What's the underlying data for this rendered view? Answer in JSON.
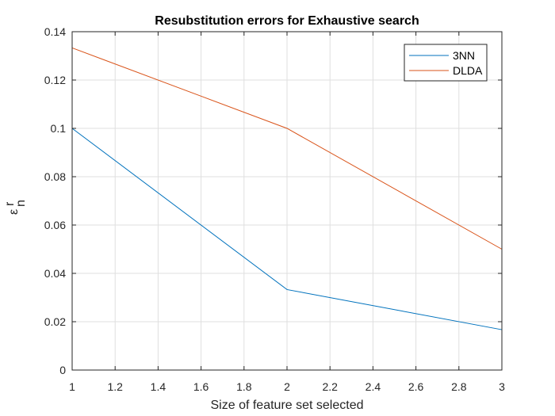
{
  "chart_data": {
    "type": "line",
    "title": "Resubstitution errors for Exhaustive search",
    "xlabel": "Size of feature set selected",
    "ylabel": {
      "base": "ε",
      "superscript": "r",
      "subscript": "n"
    },
    "xlim": [
      1,
      3
    ],
    "ylim": [
      0,
      0.14
    ],
    "xticks": [
      1,
      1.2,
      1.4,
      1.6,
      1.8,
      2,
      2.2,
      2.4,
      2.6,
      2.8,
      3
    ],
    "xtick_labels": [
      "1",
      "1.2",
      "1.4",
      "1.6",
      "1.8",
      "2",
      "2.2",
      "2.4",
      "2.6",
      "2.8",
      "3"
    ],
    "yticks": [
      0,
      0.02,
      0.04,
      0.06,
      0.08,
      0.1,
      0.12,
      0.14
    ],
    "ytick_labels": [
      "0",
      "0.02",
      "0.04",
      "0.06",
      "0.08",
      "0.1",
      "0.12",
      "0.14"
    ],
    "grid": true,
    "legend_position": "top-right",
    "x": [
      1,
      2,
      3
    ],
    "series": [
      {
        "name": "3NN",
        "values": [
          0.1,
          0.0333,
          0.0167
        ],
        "color": "#0072BD"
      },
      {
        "name": "DLDA",
        "values": [
          0.1333,
          0.1,
          0.05
        ],
        "color": "#D95319"
      }
    ]
  }
}
